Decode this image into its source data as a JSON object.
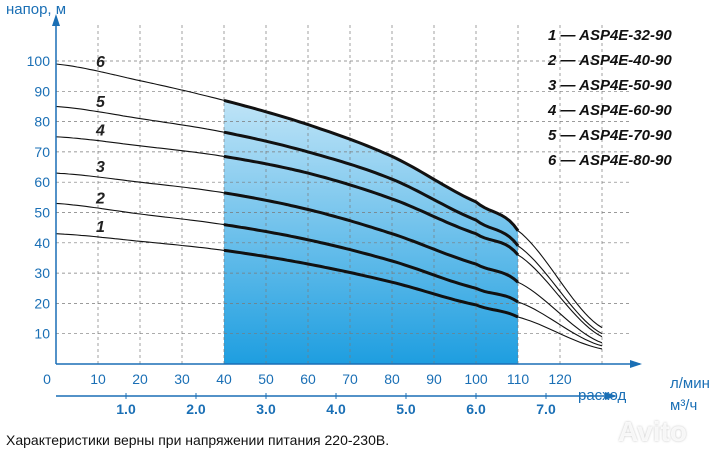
{
  "chart_data": {
    "type": "line",
    "ylabel": "напор, м",
    "xlabel_primary": "расход",
    "unit_primary": "л/мин",
    "unit_secondary": "м³/ч",
    "ylim": [
      0,
      100
    ],
    "y_ticks": [
      "10",
      "20",
      "30",
      "40",
      "50",
      "60",
      "70",
      "80",
      "90",
      "100"
    ],
    "x_ticks": [
      "0",
      "10",
      "20",
      "30",
      "40",
      "50",
      "60",
      "70",
      "80",
      "90",
      "100",
      "110",
      "120"
    ],
    "x2_ticks": [
      "1.0",
      "2.0",
      "3.0",
      "4.0",
      "5.0",
      "6.0",
      "7.0"
    ],
    "x2_tick_values_lmin": [
      16.67,
      33.33,
      50,
      66.67,
      83.33,
      100,
      116.67
    ],
    "working_range": [
      40,
      110
    ],
    "grid": true,
    "legend_position": "top-right",
    "series": [
      {
        "label": "1",
        "legend": "1 — ASP4E-32-90",
        "x": [
          0,
          20,
          40,
          60,
          80,
          100,
          110,
          130
        ],
        "y": [
          43,
          40.5,
          37.5,
          33,
          27,
          19.5,
          15.5,
          5
        ]
      },
      {
        "label": "2",
        "legend": "2 — ASP4E-40-90",
        "x": [
          0,
          20,
          40,
          60,
          80,
          100,
          110,
          130
        ],
        "y": [
          53,
          49.5,
          46,
          41,
          34,
          25,
          20.5,
          6
        ]
      },
      {
        "label": "3",
        "legend": "3 — ASP4E-50-90",
        "x": [
          0,
          20,
          40,
          60,
          80,
          100,
          110,
          130
        ],
        "y": [
          63,
          60,
          56.5,
          51,
          43,
          33,
          27,
          7
        ]
      },
      {
        "label": "4",
        "legend": "4 — ASP4E-60-90",
        "x": [
          0,
          20,
          40,
          60,
          80,
          100,
          110,
          130
        ],
        "y": [
          75,
          72,
          68.5,
          63,
          54.5,
          43,
          36,
          9
        ]
      },
      {
        "label": "5",
        "legend": "5 — ASP4E-70-90",
        "x": [
          0,
          20,
          40,
          60,
          80,
          100,
          110,
          130
        ],
        "y": [
          85,
          81,
          76.5,
          70,
          61,
          47.5,
          39,
          10
        ]
      },
      {
        "label": "6",
        "legend": "6 — ASP4E-80-90",
        "x": [
          0,
          20,
          40,
          60,
          80,
          100,
          110,
          130
        ],
        "y": [
          99,
          93.5,
          87,
          79,
          68.5,
          53.5,
          44,
          12
        ]
      }
    ]
  },
  "colors": {
    "axis": "#1a6fb5",
    "grid": "#7a7a7a",
    "fill_top": "#bfe4f7",
    "fill_bottom": "#1e9ee0",
    "curve": "#111111"
  },
  "footnote": "Характеристики верны при напряжении питания 220-230В.",
  "watermark": "Avito"
}
